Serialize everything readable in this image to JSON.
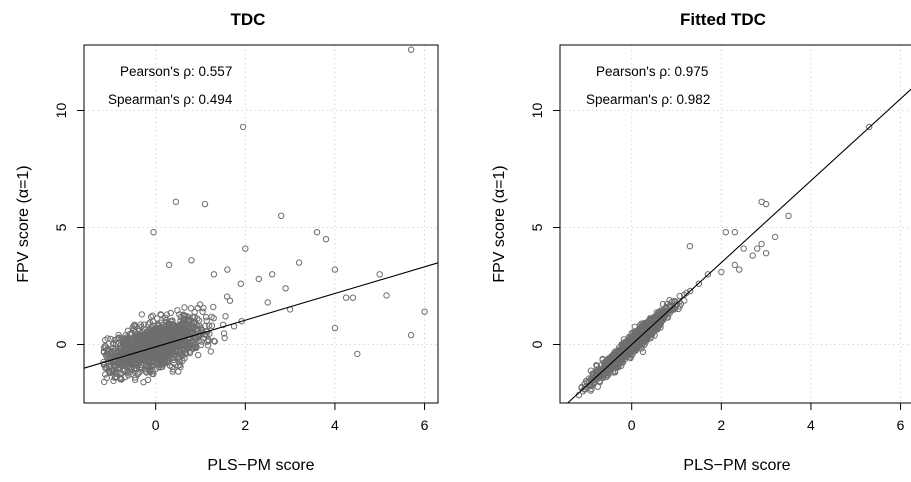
{
  "chart_data": [
    {
      "type": "scatter",
      "title": "TDC",
      "xlabel": "PLS−PM score",
      "ylabel": "FPV score (α=1)",
      "xlim": [
        -1.6,
        6.3
      ],
      "ylim": [
        -2.5,
        12.8
      ],
      "xticks": [
        0,
        2,
        4,
        6
      ],
      "yticks": [
        0,
        5,
        10
      ],
      "grid": true,
      "annotations": [
        "Pearson's ρ: 0.557",
        "Spearman's ρ: 0.494"
      ],
      "fit_line": {
        "intercept": -0.1,
        "slope": 0.57
      },
      "point_color": "#6e6e6e",
      "cloud": {
        "n": 1300,
        "x_mean": 0.0,
        "x_sd": 0.55,
        "slope": 0.55,
        "noise_sd": 0.5
      },
      "points": [
        {
          "x": 5.7,
          "y": 12.6
        },
        {
          "x": 1.95,
          "y": 9.3
        },
        {
          "x": 0.45,
          "y": 6.1
        },
        {
          "x": 1.1,
          "y": 6.0
        },
        {
          "x": 2.8,
          "y": 5.5
        },
        {
          "x": 3.6,
          "y": 4.8
        },
        {
          "x": 3.8,
          "y": 4.5
        },
        {
          "x": -0.05,
          "y": 4.8
        },
        {
          "x": 2.0,
          "y": 4.1
        },
        {
          "x": 4.0,
          "y": 3.2
        },
        {
          "x": 5.0,
          "y": 3.0
        },
        {
          "x": 5.15,
          "y": 2.1
        },
        {
          "x": 4.4,
          "y": 2.0
        },
        {
          "x": 4.25,
          "y": 2.0
        },
        {
          "x": 6.0,
          "y": 1.4
        },
        {
          "x": 4.5,
          "y": -0.4
        },
        {
          "x": 5.7,
          "y": 0.4
        },
        {
          "x": 4.0,
          "y": 0.7
        },
        {
          "x": 3.2,
          "y": 3.5
        },
        {
          "x": 2.6,
          "y": 3.0
        },
        {
          "x": 2.9,
          "y": 2.4
        },
        {
          "x": 1.6,
          "y": 3.2
        },
        {
          "x": 0.8,
          "y": 3.6
        },
        {
          "x": 0.3,
          "y": 3.4
        },
        {
          "x": 1.3,
          "y": 3.0
        },
        {
          "x": 2.3,
          "y": 2.8
        },
        {
          "x": 3.0,
          "y": 1.5
        },
        {
          "x": 2.5,
          "y": 1.8
        },
        {
          "x": 1.9,
          "y": 2.6
        }
      ]
    },
    {
      "type": "scatter",
      "title": "Fitted TDC",
      "xlabel": "PLS−PM score",
      "ylabel": "FPV score (α=1)",
      "xlim": [
        -1.6,
        6.3
      ],
      "ylim": [
        -2.5,
        12.8
      ],
      "xticks": [
        0,
        2,
        4,
        6
      ],
      "yticks": [
        0,
        5,
        10
      ],
      "grid": true,
      "annotations": [
        "Pearson's ρ: 0.975",
        "Spearman's ρ: 0.982"
      ],
      "fit_line": {
        "intercept": 0.0,
        "slope": 1.75
      },
      "point_color": "#6e6e6e",
      "cloud": {
        "n": 1300,
        "x_mean": 0.0,
        "x_sd": 0.42,
        "slope": 1.75,
        "noise_sd": 0.18
      },
      "points": [
        {
          "x": 5.3,
          "y": 9.3
        },
        {
          "x": 2.9,
          "y": 6.1
        },
        {
          "x": 3.0,
          "y": 6.0
        },
        {
          "x": 3.5,
          "y": 5.5
        },
        {
          "x": 2.1,
          "y": 4.8
        },
        {
          "x": 2.3,
          "y": 4.8
        },
        {
          "x": 1.3,
          "y": 4.2
        },
        {
          "x": 3.2,
          "y": 4.6
        },
        {
          "x": 2.9,
          "y": 4.3
        },
        {
          "x": 2.8,
          "y": 4.1
        },
        {
          "x": 2.5,
          "y": 4.1
        },
        {
          "x": 2.7,
          "y": 3.8
        },
        {
          "x": 3.0,
          "y": 3.9
        },
        {
          "x": 2.3,
          "y": 3.4
        },
        {
          "x": 2.0,
          "y": 3.1
        },
        {
          "x": 1.7,
          "y": 3.0
        },
        {
          "x": 2.4,
          "y": 3.2
        },
        {
          "x": 1.5,
          "y": 2.6
        }
      ]
    }
  ]
}
